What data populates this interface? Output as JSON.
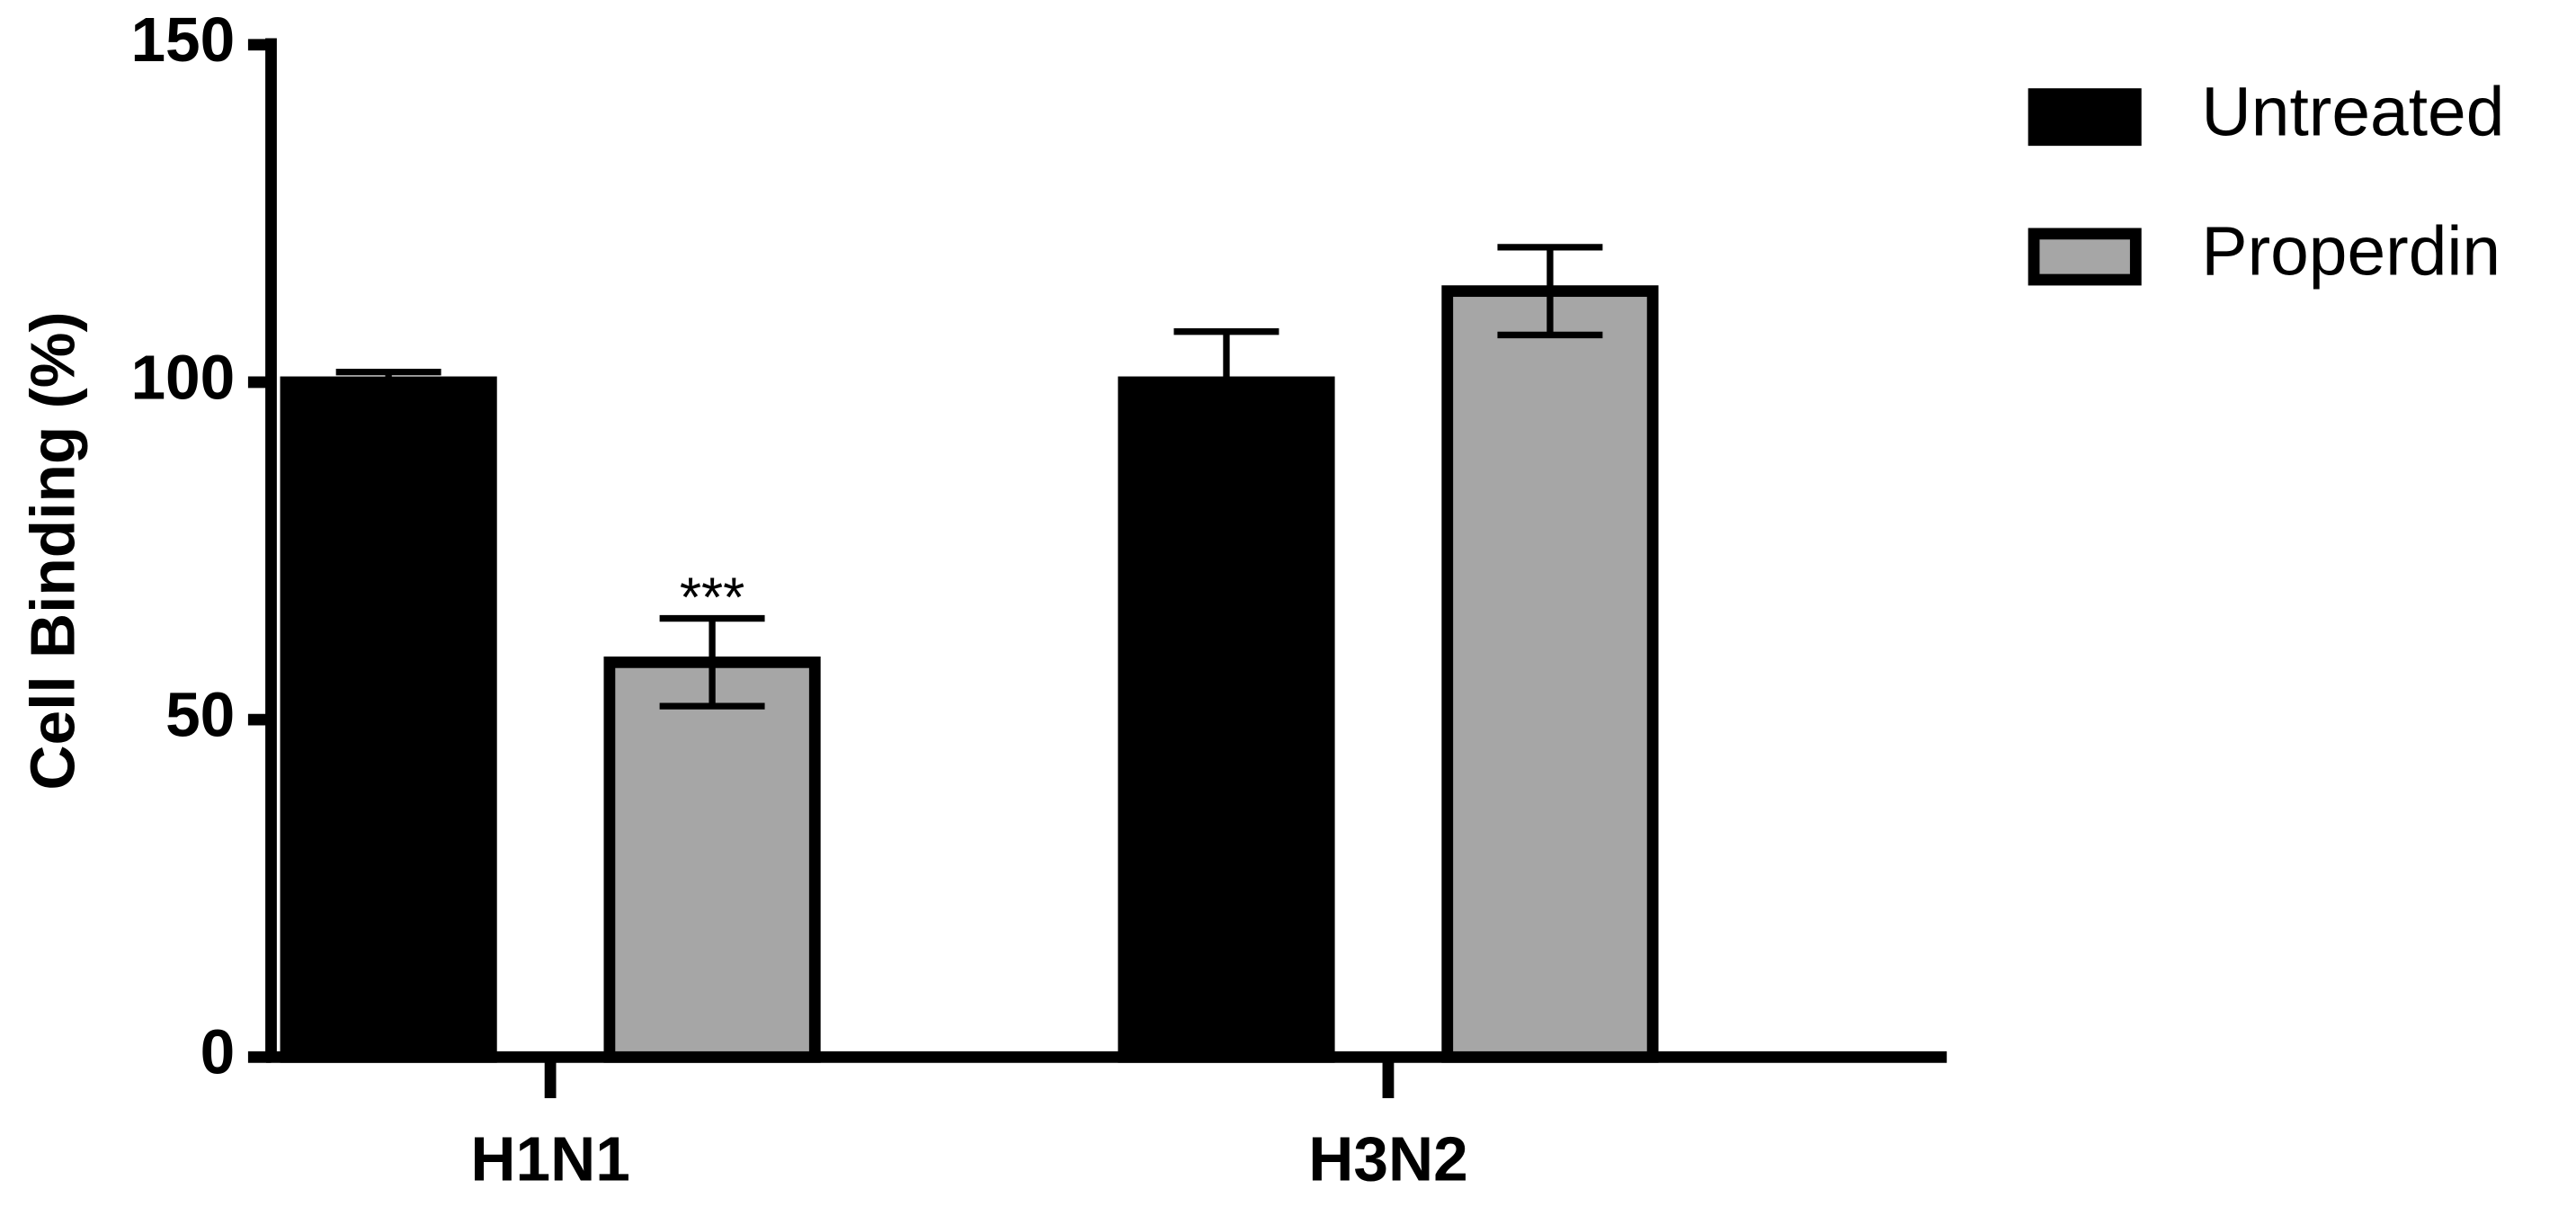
{
  "chart_data": {
    "type": "bar",
    "y_label": "Cell Binding (%)",
    "categories": [
      "H1N1",
      "H3N2"
    ],
    "series": [
      {
        "name": "Untreated",
        "color": "#000000",
        "values": [
          100,
          100
        ],
        "errors": [
          1.5,
          7.5
        ]
      },
      {
        "name": "Properdin",
        "color": "#a6a6a6",
        "values": [
          58.5,
          113.5
        ],
        "errors": [
          6.5,
          6.5
        ]
      }
    ],
    "annotations": [
      "***"
    ],
    "ylim": [
      0,
      150
    ],
    "yticks": [
      0,
      50,
      100,
      150
    ],
    "grid": false,
    "legend": "right"
  }
}
